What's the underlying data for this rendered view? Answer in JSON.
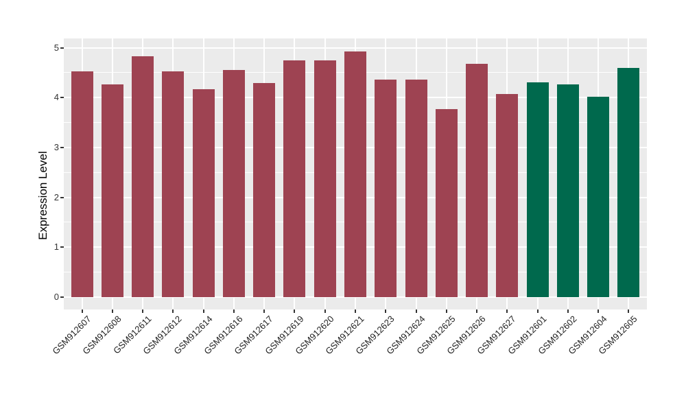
{
  "chart_data": {
    "type": "bar",
    "title": "",
    "xlabel": "",
    "ylabel": "Expression Level",
    "categories": [
      "GSM912607",
      "GSM912608",
      "GSM912611",
      "GSM912612",
      "GSM912614",
      "GSM912616",
      "GSM912617",
      "GSM912619",
      "GSM912620",
      "GSM912621",
      "GSM912623",
      "GSM912624",
      "GSM912625",
      "GSM912626",
      "GSM912627",
      "GSM912601",
      "GSM912602",
      "GSM912604",
      "GSM912605"
    ],
    "values": [
      4.53,
      4.26,
      4.83,
      4.52,
      4.17,
      4.56,
      4.29,
      4.74,
      4.74,
      4.93,
      4.36,
      4.36,
      3.77,
      4.68,
      4.07,
      4.3,
      4.26,
      4.01,
      4.6
    ],
    "bar_colors": [
      "#9E4352",
      "#9E4352",
      "#9E4352",
      "#9E4352",
      "#9E4352",
      "#9E4352",
      "#9E4352",
      "#9E4352",
      "#9E4352",
      "#9E4352",
      "#9E4352",
      "#9E4352",
      "#9E4352",
      "#9E4352",
      "#9E4352",
      "#00694D",
      "#00694D",
      "#00694D",
      "#00694D"
    ],
    "yticks": [
      0,
      1,
      2,
      3,
      4,
      5
    ],
    "yticks_minor": [
      0.5,
      1.5,
      2.5,
      3.5,
      4.5
    ],
    "ylim": [
      0,
      5.2
    ],
    "grid": "white major and minor horizontal lines, white vertical lines at category centers, on gray panel",
    "legend": "none",
    "x_tick_rotation_deg": 45,
    "style_colors": {
      "panel_background": "#EBEBEB",
      "gridline": "#FFFFFF",
      "axis_text": "#333333",
      "red_bars": "#9E4352",
      "green_bars": "#00694D"
    }
  }
}
